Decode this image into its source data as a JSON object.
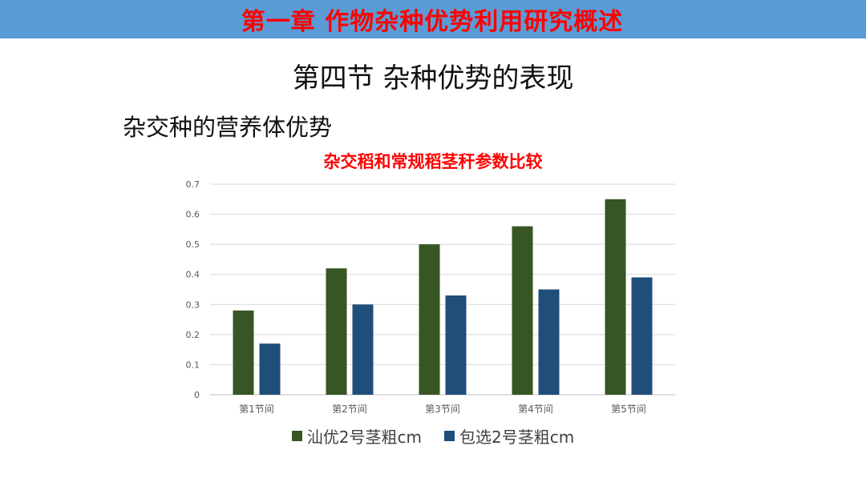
{
  "header": {
    "title": "第一章  作物杂种优势利用研究概述"
  },
  "section": {
    "title": "第四节 杂种优势的表现"
  },
  "subtitle": "杂交种的营养体优势",
  "colors": {
    "banner": "#5b9bd5",
    "series1": "#375623",
    "series2": "#1f4e79",
    "title_red": "#ff0000"
  },
  "chart_data": {
    "type": "bar",
    "title": "杂交稻和常规稻茎秆参数比较",
    "categories": [
      "第1节间",
      "第2节间",
      "第3节间",
      "第4节间",
      "第5节间"
    ],
    "series": [
      {
        "name": "汕优2号茎粗cm",
        "values": [
          0.28,
          0.42,
          0.5,
          0.56,
          0.65
        ]
      },
      {
        "name": "包选2号茎粗cm",
        "values": [
          0.17,
          0.3,
          0.33,
          0.35,
          0.39
        ]
      }
    ],
    "yticks": [
      "0",
      "0.1",
      "0.2",
      "0.3",
      "0.4",
      "0.5",
      "0.6",
      "0.7"
    ],
    "ylim": [
      0,
      0.7
    ],
    "grid": true,
    "legend": "bottom"
  }
}
